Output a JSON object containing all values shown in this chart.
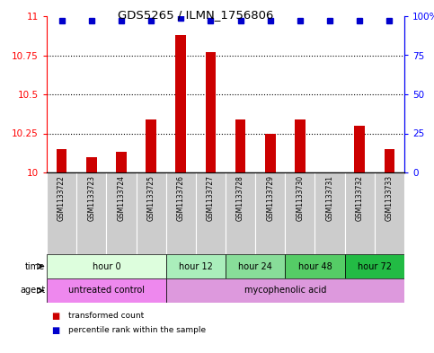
{
  "title": "GDS5265 / ILMN_1756806",
  "samples": [
    "GSM1133722",
    "GSM1133723",
    "GSM1133724",
    "GSM1133725",
    "GSM1133726",
    "GSM1133727",
    "GSM1133728",
    "GSM1133729",
    "GSM1133730",
    "GSM1133731",
    "GSM1133732",
    "GSM1133733"
  ],
  "bar_values": [
    10.15,
    10.1,
    10.13,
    10.34,
    10.88,
    10.77,
    10.34,
    10.25,
    10.34,
    10.0,
    10.3,
    10.15
  ],
  "percentile_values": [
    97,
    97,
    97,
    97,
    99,
    97,
    97,
    97,
    97,
    97,
    97,
    97
  ],
  "bar_color": "#CC0000",
  "dot_color": "#0000CC",
  "ylim_left": [
    10,
    11
  ],
  "ylim_right": [
    0,
    100
  ],
  "yticks_left": [
    10,
    10.25,
    10.5,
    10.75,
    11
  ],
  "yticks_right": [
    0,
    25,
    50,
    75,
    100
  ],
  "dotted_lines": [
    10.25,
    10.5,
    10.75
  ],
  "time_groups": [
    {
      "label": "hour 0",
      "start": 0,
      "end": 4,
      "color": "#ddfedd"
    },
    {
      "label": "hour 12",
      "start": 4,
      "end": 6,
      "color": "#aaeebb"
    },
    {
      "label": "hour 24",
      "start": 6,
      "end": 8,
      "color": "#88dd99"
    },
    {
      "label": "hour 48",
      "start": 8,
      "end": 10,
      "color": "#55cc66"
    },
    {
      "label": "hour 72",
      "start": 10,
      "end": 12,
      "color": "#22bb44"
    }
  ],
  "agent_groups": [
    {
      "label": "untreated control",
      "start": 0,
      "end": 4,
      "color": "#ee88ee"
    },
    {
      "label": "mycophenolic acid",
      "start": 4,
      "end": 12,
      "color": "#dd99dd"
    }
  ],
  "legend_items": [
    {
      "label": "transformed count",
      "color": "#CC0000"
    },
    {
      "label": "percentile rank within the sample",
      "color": "#0000CC"
    }
  ],
  "bar_width": 0.35,
  "background_color": "#ffffff",
  "plot_bg_color": "#ffffff",
  "sample_bg_color": "#cccccc",
  "sample_sep_color": "#ffffff"
}
